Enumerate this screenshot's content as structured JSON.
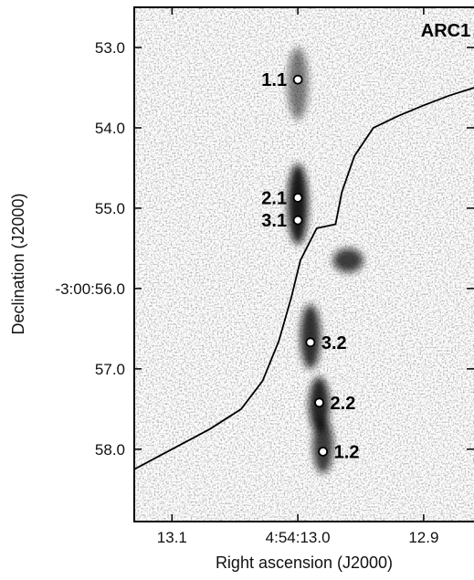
{
  "chart_data": {
    "type": "scatter",
    "title": "ARC1",
    "xlabel": "Right ascension (J2000)",
    "ylabel": "Declination (J2000)",
    "x_ticks": [
      {
        "label": "13.1",
        "value": 13.1
      },
      {
        "label": "4:54:13.0",
        "value": 13.0
      },
      {
        "label": "12.9",
        "value": 12.9
      }
    ],
    "y_ticks": [
      {
        "label": "53.0",
        "value": 53.0
      },
      {
        "label": "54.0",
        "value": 54.0
      },
      {
        "label": "55.0",
        "value": 55.0
      },
      {
        "label": "-3:00:56.0",
        "value": 56.0
      },
      {
        "label": "57.0",
        "value": 57.0
      },
      {
        "label": "58.0",
        "value": 58.0
      }
    ],
    "xlim": [
      13.13,
      12.86
    ],
    "ylim": [
      52.5,
      58.9
    ],
    "y_inverted": true,
    "points": [
      {
        "label": "1.1",
        "x": 13.0,
        "y": 53.4,
        "label_side": "left"
      },
      {
        "label": "2.1",
        "x": 13.0,
        "y": 54.87,
        "label_side": "left"
      },
      {
        "label": "3.1",
        "x": 13.0,
        "y": 55.15,
        "label_side": "left"
      },
      {
        "label": "3.2",
        "x": 12.99,
        "y": 56.67,
        "label_side": "right"
      },
      {
        "label": "2.2",
        "x": 12.983,
        "y": 57.42,
        "label_side": "right"
      },
      {
        "label": "1.2",
        "x": 12.98,
        "y": 58.03,
        "label_side": "right"
      }
    ],
    "critical_curve": [
      [
        13.13,
        58.25
      ],
      [
        13.1,
        58.0
      ],
      [
        13.07,
        57.75
      ],
      [
        13.045,
        57.5
      ],
      [
        13.028,
        57.15
      ],
      [
        13.015,
        56.65
      ],
      [
        13.005,
        56.1
      ],
      [
        12.998,
        55.65
      ],
      [
        12.985,
        55.25
      ],
      [
        12.97,
        55.2
      ],
      [
        12.965,
        54.8
      ],
      [
        12.955,
        54.35
      ],
      [
        12.94,
        54.0
      ],
      [
        12.92,
        53.85
      ],
      [
        12.9,
        53.72
      ],
      [
        12.88,
        53.6
      ],
      [
        12.86,
        53.5
      ]
    ],
    "image_blobs": [
      {
        "x": 13.0,
        "y": 53.45,
        "rx": 0.008,
        "ry": 0.45,
        "strength": 0.55
      },
      {
        "x": 13.0,
        "y": 54.95,
        "rx": 0.008,
        "ry": 0.5,
        "strength": 0.95
      },
      {
        "x": 12.99,
        "y": 56.6,
        "rx": 0.008,
        "ry": 0.4,
        "strength": 0.85
      },
      {
        "x": 12.983,
        "y": 57.45,
        "rx": 0.008,
        "ry": 0.35,
        "strength": 0.9
      },
      {
        "x": 12.98,
        "y": 57.95,
        "rx": 0.008,
        "ry": 0.35,
        "strength": 0.8
      },
      {
        "x": 12.96,
        "y": 55.65,
        "rx": 0.012,
        "ry": 0.15,
        "strength": 0.8
      }
    ]
  }
}
